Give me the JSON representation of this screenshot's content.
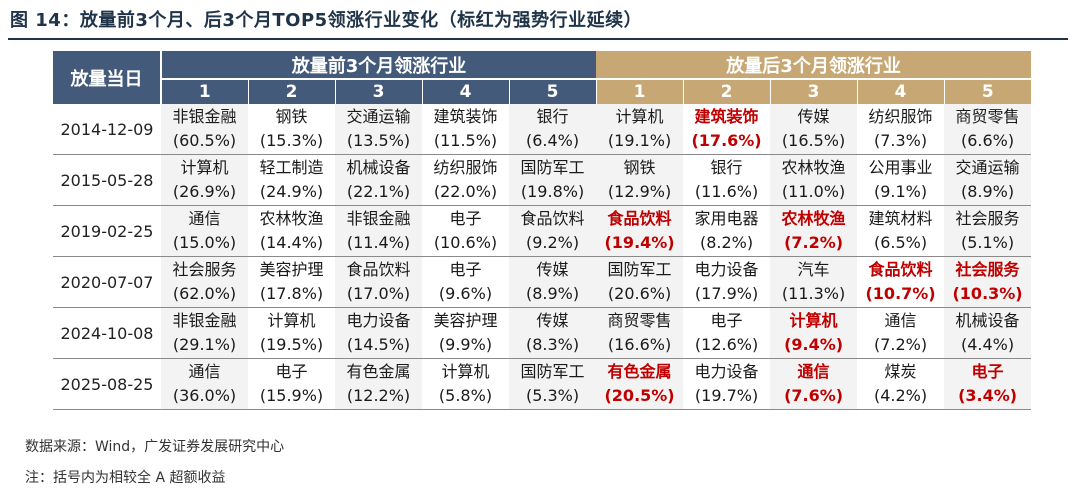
{
  "title": "图 14：放量前3个月、后3个月TOP5领涨行业变化（标红为强势行业延续）",
  "table": {
    "date_header": "放量当日",
    "before_header": "放量前3个月领涨行业",
    "after_header": "放量后3个月领涨行业",
    "rank_labels": [
      "1",
      "2",
      "3",
      "4",
      "5"
    ],
    "rows": [
      {
        "date": "2014-12-09",
        "before": [
          {
            "name": "非银金融",
            "value": "(60.5%)"
          },
          {
            "name": "钢铁",
            "value": "(15.3%)"
          },
          {
            "name": "交通运输",
            "value": "(13.5%)"
          },
          {
            "name": "建筑装饰",
            "value": "(11.5%)"
          },
          {
            "name": "银行",
            "value": "(6.4%)"
          }
        ],
        "after": [
          {
            "name": "计算机",
            "value": "(19.1%)",
            "highlight": false
          },
          {
            "name": "建筑装饰",
            "value": "(17.6%)",
            "highlight": true
          },
          {
            "name": "传媒",
            "value": "(16.5%)",
            "highlight": false
          },
          {
            "name": "纺织服饰",
            "value": "(7.3%)",
            "highlight": false
          },
          {
            "name": "商贸零售",
            "value": "(6.6%)",
            "highlight": false
          }
        ]
      },
      {
        "date": "2015-05-28",
        "before": [
          {
            "name": "计算机",
            "value": "(26.9%)"
          },
          {
            "name": "轻工制造",
            "value": "(24.9%)"
          },
          {
            "name": "机械设备",
            "value": "(22.1%)"
          },
          {
            "name": "纺织服饰",
            "value": "(22.0%)"
          },
          {
            "name": "国防军工",
            "value": "(19.8%)"
          }
        ],
        "after": [
          {
            "name": "钢铁",
            "value": "(12.9%)",
            "highlight": false
          },
          {
            "name": "银行",
            "value": "(11.6%)",
            "highlight": false
          },
          {
            "name": "农林牧渔",
            "value": "(11.0%)",
            "highlight": false
          },
          {
            "name": "公用事业",
            "value": "(9.1%)",
            "highlight": false
          },
          {
            "name": "交通运输",
            "value": "(8.9%)",
            "highlight": false
          }
        ]
      },
      {
        "date": "2019-02-25",
        "before": [
          {
            "name": "通信",
            "value": "(15.0%)"
          },
          {
            "name": "农林牧渔",
            "value": "(14.4%)"
          },
          {
            "name": "非银金融",
            "value": "(11.4%)"
          },
          {
            "name": "电子",
            "value": "(10.6%)"
          },
          {
            "name": "食品饮料",
            "value": "(9.2%)"
          }
        ],
        "after": [
          {
            "name": "食品饮料",
            "value": "(19.4%)",
            "highlight": true
          },
          {
            "name": "家用电器",
            "value": "(8.2%)",
            "highlight": false
          },
          {
            "name": "农林牧渔",
            "value": "(7.2%)",
            "highlight": true
          },
          {
            "name": "建筑材料",
            "value": "(6.5%)",
            "highlight": false
          },
          {
            "name": "社会服务",
            "value": "(5.1%)",
            "highlight": false
          }
        ]
      },
      {
        "date": "2020-07-07",
        "before": [
          {
            "name": "社会服务",
            "value": "(62.0%)"
          },
          {
            "name": "美容护理",
            "value": "(17.8%)"
          },
          {
            "name": "食品饮料",
            "value": "(17.0%)"
          },
          {
            "name": "电子",
            "value": "(9.6%)"
          },
          {
            "name": "传媒",
            "value": "(8.9%)"
          }
        ],
        "after": [
          {
            "name": "国防军工",
            "value": "(20.6%)",
            "highlight": false
          },
          {
            "name": "电力设备",
            "value": "(17.9%)",
            "highlight": false
          },
          {
            "name": "汽车",
            "value": "(11.3%)",
            "highlight": false
          },
          {
            "name": "食品饮料",
            "value": "(10.7%)",
            "highlight": true
          },
          {
            "name": "社会服务",
            "value": "(10.3%)",
            "highlight": true
          }
        ]
      },
      {
        "date": "2024-10-08",
        "before": [
          {
            "name": "非银金融",
            "value": "(29.1%)"
          },
          {
            "name": "计算机",
            "value": "(19.5%)"
          },
          {
            "name": "电力设备",
            "value": "(14.5%)"
          },
          {
            "name": "美容护理",
            "value": "(9.9%)"
          },
          {
            "name": "传媒",
            "value": "(8.3%)"
          }
        ],
        "after": [
          {
            "name": "商贸零售",
            "value": "(16.6%)",
            "highlight": false
          },
          {
            "name": "电子",
            "value": "(12.6%)",
            "highlight": false
          },
          {
            "name": "计算机",
            "value": "(9.4%)",
            "highlight": true
          },
          {
            "name": "通信",
            "value": "(7.2%)",
            "highlight": false
          },
          {
            "name": "机械设备",
            "value": "(4.4%)",
            "highlight": false
          }
        ]
      },
      {
        "date": "2025-08-25",
        "before": [
          {
            "name": "通信",
            "value": "(36.0%)"
          },
          {
            "name": "电子",
            "value": "(15.9%)"
          },
          {
            "name": "有色金属",
            "value": "(12.2%)"
          },
          {
            "name": "计算机",
            "value": "(5.8%)"
          },
          {
            "name": "国防军工",
            "value": "(5.3%)"
          }
        ],
        "after": [
          {
            "name": "有色金属",
            "value": "(20.5%)",
            "highlight": true
          },
          {
            "name": "电力设备",
            "value": "(19.7%)",
            "highlight": false
          },
          {
            "name": "通信",
            "value": "(7.6%)",
            "highlight": true
          },
          {
            "name": "煤炭",
            "value": "(4.2%)",
            "highlight": false
          },
          {
            "name": "电子",
            "value": "(3.4%)",
            "highlight": true
          }
        ]
      }
    ]
  },
  "source": "数据来源：Wind，广发证券发展研究中心",
  "note": "注：括号内为相较全 A 超额收益",
  "colors": {
    "header_before": "#445a7b",
    "header_after": "#c7a773",
    "highlight_text": "#c00000",
    "title_text": "#1f3349"
  }
}
